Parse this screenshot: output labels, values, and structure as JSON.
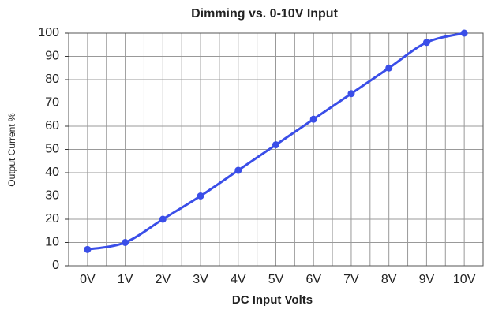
{
  "chart_data": {
    "type": "line",
    "title": "Dimming vs. 0-10V Input",
    "x_label": "DC Input Volts",
    "y_label": "Output Current %",
    "categories": [
      "0V",
      "1V",
      "2V",
      "3V",
      "4V",
      "5V",
      "6V",
      "7V",
      "8V",
      "9V",
      "10V"
    ],
    "series": [
      {
        "name": "Output Current %",
        "color": "#3a4ee8",
        "values": [
          7,
          10,
          20,
          30,
          41,
          52,
          63,
          74,
          85,
          96,
          100
        ]
      }
    ],
    "ylim": [
      0,
      100
    ],
    "yticks": [
      0,
      10,
      20,
      30,
      40,
      50,
      60,
      70,
      80,
      90,
      100
    ],
    "grid": true,
    "smooth": true
  }
}
